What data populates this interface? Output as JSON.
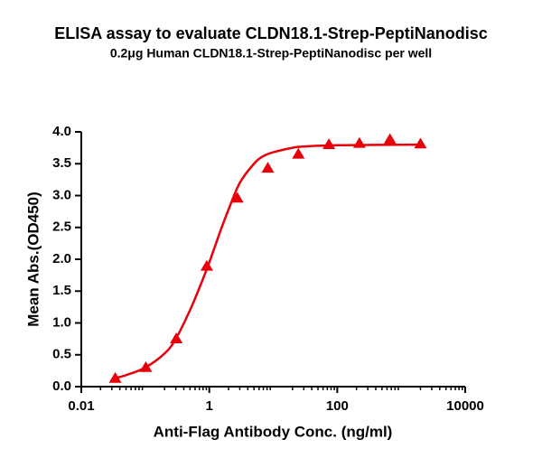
{
  "chart_data": {
    "type": "scatter",
    "title": "ELISA assay to evaluate CLDN18.1-Strep-PeptiNanodisc",
    "subtitle": "0.2μg Human CLDN18.1-Strep-PeptiNanodisc per well",
    "x_label": "Anti-Flag Antibody Conc. (ng/ml)",
    "y_label": "Mean Abs.(OD450)",
    "x": [
      0.0339,
      0.102,
      0.305,
      0.914,
      2.74,
      8.23,
      24.69,
      74.07,
      222.2,
      666.7,
      2000
    ],
    "values": [
      0.13,
      0.3,
      0.75,
      1.89,
      2.96,
      3.43,
      3.65,
      3.8,
      3.82,
      3.88,
      3.81
    ],
    "color": "#e8000b",
    "curve": {
      "x": [
        0.03,
        0.05,
        0.1,
        0.2,
        0.3,
        0.5,
        0.7,
        1,
        1.5,
        2,
        3,
        5,
        7,
        10,
        20,
        30,
        100,
        2000
      ],
      "values": [
        0.12,
        0.18,
        0.3,
        0.52,
        0.75,
        1.2,
        1.55,
        1.95,
        2.45,
        2.78,
        3.2,
        3.5,
        3.62,
        3.68,
        3.75,
        3.77,
        3.79,
        3.8
      ]
    },
    "x_log": true,
    "xlim": [
      0.01,
      10000
    ],
    "xticks": [
      0.01,
      1,
      100,
      10000
    ],
    "ylim": [
      0,
      4
    ],
    "yticks": [
      {
        "value": 0,
        "label": "0.0"
      },
      {
        "value": 0.5,
        "label": "0.5"
      },
      {
        "value": 1,
        "label": "1.0"
      },
      {
        "value": 1.5,
        "label": "1.5"
      },
      {
        "value": 2,
        "label": "2.0"
      },
      {
        "value": 2.5,
        "label": "2.5"
      },
      {
        "value": 3,
        "label": "3.0"
      },
      {
        "value": 3.5,
        "label": "3.5"
      },
      {
        "value": 4,
        "label": "4.0"
      }
    ]
  }
}
